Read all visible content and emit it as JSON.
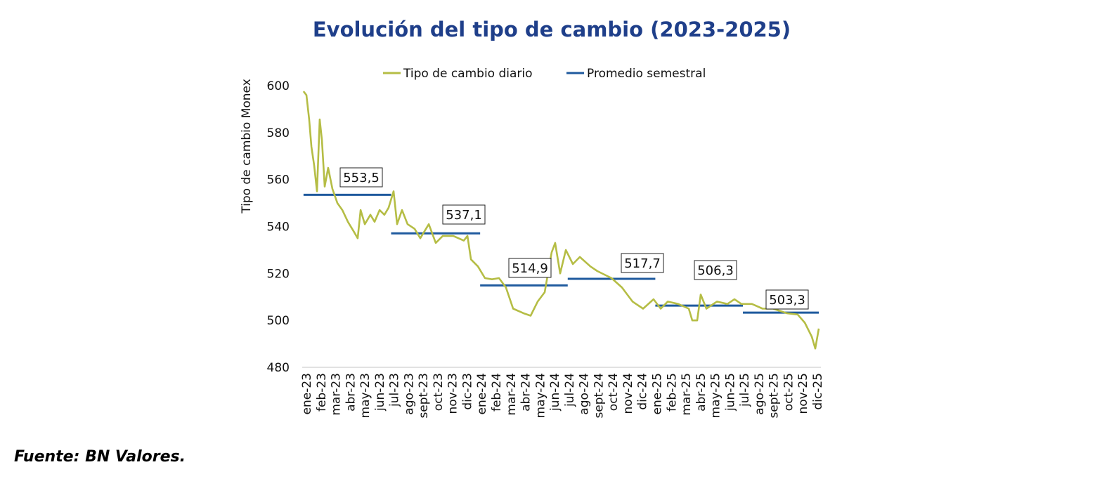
{
  "chart_data": {
    "type": "line",
    "title": "Evolución del tipo de cambio (2023-2025)",
    "xlabel": "",
    "ylabel": "Tipo de cambio Monex",
    "ylim": [
      480,
      600
    ],
    "yticks": [
      480,
      500,
      520,
      540,
      560,
      580,
      600
    ],
    "x_units": "months since ene-23",
    "xticks": [
      "ene-23",
      "feb-23",
      "mar-23",
      "abr-23",
      "may-23",
      "jun-23",
      "jul-23",
      "ago-23",
      "sept-23",
      "oct-23",
      "nov-23",
      "dic-23",
      "ene-24",
      "feb-24",
      "mar-24",
      "abr-24",
      "may-24",
      "jun-24",
      "jul-24",
      "ago-24",
      "sept-24",
      "oct-24",
      "nov-24",
      "dic-24",
      "ene-25",
      "feb-25",
      "mar-25",
      "abr-25",
      "may-25",
      "jun-25",
      "jul-25",
      "ago-25",
      "sept-25",
      "oct-25",
      "nov-25",
      "dic-25"
    ],
    "grid": false,
    "legend": {
      "placement": "top-center",
      "entries": [
        "Tipo de cambio diario",
        "Promedio semestral"
      ]
    },
    "series": [
      {
        "name": "Tipo de cambio diario",
        "color": "#b5bd45",
        "x": [
          -0.2,
          0,
          0.19,
          0.34,
          0.53,
          0.72,
          0.91,
          1.06,
          1.25,
          1.49,
          1.78,
          2.12,
          2.46,
          2.84,
          3.23,
          3.51,
          3.71,
          4.0,
          4.38,
          4.67,
          5.01,
          5.34,
          5.63,
          5.97,
          6.21,
          6.55,
          6.93,
          7.41,
          7.8,
          8.38,
          8.86,
          9.34,
          10.06,
          10.78,
          11.03,
          11.27,
          11.75,
          12.23,
          12.71,
          13.19,
          13.67,
          14.16,
          14.88,
          15.36,
          15.84,
          16.32,
          16.8,
          17.04,
          17.38,
          17.77,
          18.25,
          18.73,
          19.45,
          19.93,
          20.9,
          21.62,
          22.34,
          23.06,
          23.78,
          24.27,
          24.75,
          25.47,
          26.19,
          26.43,
          26.77,
          27.01,
          27.4,
          28.12,
          28.84,
          29.32,
          29.8,
          30.52,
          31.25,
          31.97,
          32.93,
          33.65,
          34.14,
          34.62,
          34.86,
          35.1
        ],
        "values": [
          597.6,
          596,
          585.6,
          574,
          566,
          555,
          585.6,
          577,
          557,
          565,
          556,
          550,
          547,
          542,
          538,
          535,
          547,
          541,
          545,
          542,
          547,
          545,
          548,
          555,
          541,
          547,
          541,
          539,
          535,
          541,
          533,
          536,
          536,
          534,
          536,
          526,
          523,
          518,
          517.5,
          518,
          514,
          505,
          503,
          502,
          508,
          512,
          529,
          533,
          520,
          530,
          524,
          527,
          523,
          521,
          518,
          514,
          508,
          505,
          509,
          505,
          508,
          507,
          505,
          500,
          500,
          511,
          505,
          508,
          507,
          509,
          507,
          507,
          505,
          505,
          503,
          502.5,
          499,
          493,
          488,
          496.5
        ]
      },
      {
        "name": "Promedio semestral",
        "color": "#1f5a9e",
        "segments": [
          {
            "x": [
              -0.2,
              5.8
            ],
            "value": 553.5,
            "label": "553,5"
          },
          {
            "x": [
              5.8,
              11.9
            ],
            "value": 537.1,
            "label": "537,1"
          },
          {
            "x": [
              11.9,
              17.9
            ],
            "value": 514.9,
            "label": "514,9"
          },
          {
            "x": [
              17.9,
              23.9
            ],
            "value": 517.7,
            "label": "517,7"
          },
          {
            "x": [
              23.9,
              29.9
            ],
            "value": 506.3,
            "label": "506,3"
          },
          {
            "x": [
              29.9,
              35.1
            ],
            "value": 503.3,
            "label": "503,3"
          }
        ]
      }
    ]
  },
  "source": "Fuente: BN Valores."
}
